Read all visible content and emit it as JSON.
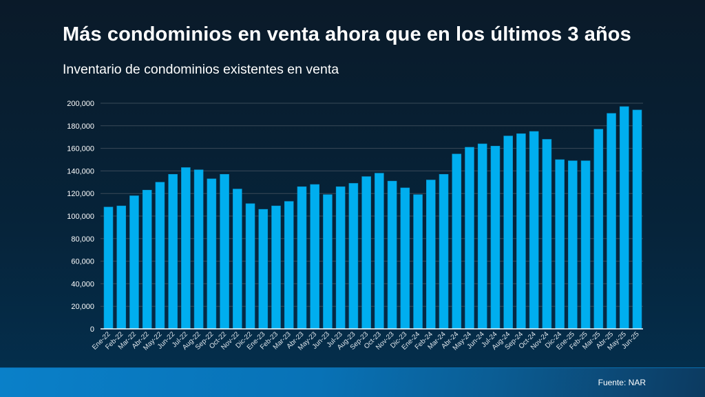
{
  "header": {
    "title": "Más condominios en venta ahora que en los últimos 3 años",
    "subtitle": "Inventario de condominios existentes en venta"
  },
  "footer": {
    "source": "Fuente: NAR"
  },
  "colors": {
    "bar": "#00aeef",
    "bar_edge": "#0a8fc6",
    "grid": "#3a4a58",
    "axis": "#ffffff",
    "text": "#ffffff",
    "footer_start": "#0a80c9",
    "footer_end": "#0c3a60"
  },
  "chart_data": {
    "type": "bar",
    "title": "Más condominios en venta ahora que en los últimos 3 años",
    "subtitle": "Inventario de condominios existentes en venta",
    "xlabel": "",
    "ylabel": "",
    "ylim": [
      0,
      200000
    ],
    "yticks": [
      0,
      20000,
      40000,
      60000,
      80000,
      100000,
      120000,
      140000,
      160000,
      180000,
      200000
    ],
    "ytick_labels": [
      "0",
      "20,000",
      "40,000",
      "60,000",
      "80,000",
      "100,000",
      "120,000",
      "140,000",
      "160,000",
      "180,000",
      "200,000"
    ],
    "grid": true,
    "legend": "none",
    "categories": [
      "Ene-22",
      "Feb-22",
      "Mar-22",
      "Abr-22",
      "May-22",
      "Jun-22",
      "Jul-22",
      "Aug-22",
      "Sep-22",
      "Oct-22",
      "Nov-22",
      "Dic-22",
      "Ene-23",
      "Feb-23",
      "Mar-23",
      "Abr-23",
      "May-23",
      "Jun-23",
      "Jul-23",
      "Aug-23",
      "Sep-23",
      "Oct-23",
      "Nov-23",
      "Dic-23",
      "Ene-24",
      "Feb-24",
      "Mar-24",
      "Abr-24",
      "May-24",
      "Jun-24",
      "Jul-24",
      "Aug-24",
      "Sep-24",
      "Oct-24",
      "Nov-24",
      "Dic-24",
      "Ene-25",
      "Feb-25",
      "Mar-25",
      "Abr-25",
      "May-25",
      "Jun-25"
    ],
    "values": [
      108000,
      109000,
      118000,
      123000,
      130000,
      137000,
      143000,
      141000,
      133000,
      137000,
      124000,
      111000,
      106000,
      109000,
      113000,
      126000,
      128000,
      119000,
      126000,
      129000,
      135000,
      138000,
      131000,
      125000,
      119000,
      132000,
      137000,
      155000,
      161000,
      164000,
      162000,
      171000,
      173000,
      175000,
      168000,
      150000,
      149000,
      149000,
      177000,
      191000,
      197000,
      194000
    ],
    "source": "Fuente: NAR"
  }
}
